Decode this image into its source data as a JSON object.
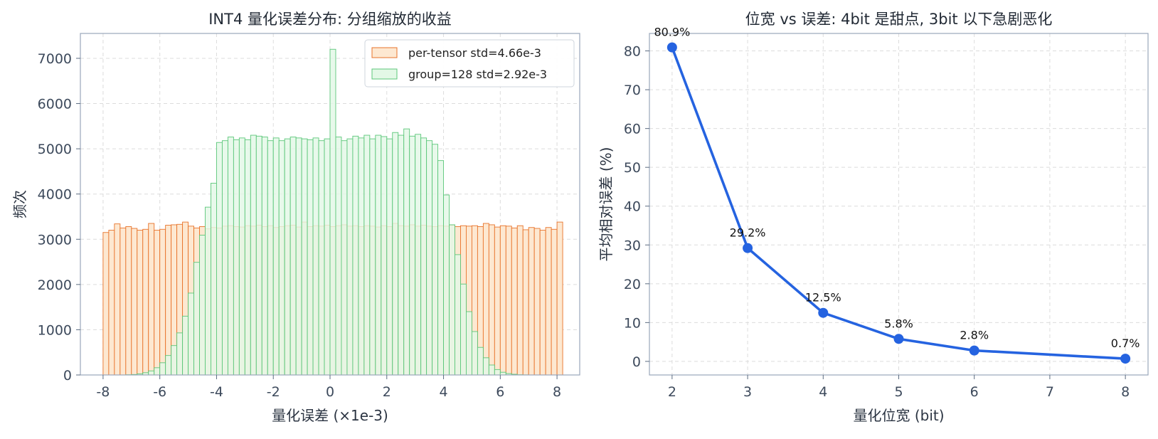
{
  "chart_data": [
    {
      "type": "bar",
      "title": "INT4 量化误差分布: 分组缩放的收益",
      "xlabel": "量化误差 (×1e-3)",
      "ylabel": "频次",
      "xlim": [
        -8.8,
        8.8
      ],
      "ylim": [
        0,
        7550
      ],
      "xticks": [
        -8,
        -6,
        -4,
        -2,
        0,
        2,
        4,
        6,
        8
      ],
      "xtick_labels": [
        "-8",
        "-6",
        "-4",
        "-2",
        "0",
        "2",
        "4",
        "6",
        "8"
      ],
      "yticks": [
        0,
        1000,
        2000,
        3000,
        4000,
        5000,
        6000,
        7000
      ],
      "grid": true,
      "legend_position": "top-right",
      "bin_width": 0.2,
      "series": [
        {
          "name": "per-tensor  std=4.66e-3",
          "color": "#e8732a",
          "fill": "#fde8d1",
          "bin_start": -8.0,
          "values": [
            3150,
            3200,
            3340,
            3250,
            3280,
            3240,
            3200,
            3220,
            3350,
            3200,
            3220,
            3310,
            3320,
            3330,
            3380,
            3290,
            3250,
            3280,
            3230,
            3260,
            3250,
            3290,
            3300,
            3280,
            3270,
            3300,
            3290,
            3310,
            3280,
            3300,
            3260,
            3280,
            3300,
            3310,
            3270,
            3380,
            3280,
            3300,
            3290,
            3310,
            3280,
            3300,
            3320,
            3290,
            3300,
            3280,
            3300,
            3290,
            3270,
            3300,
            3280,
            3350,
            3300,
            3290,
            3320,
            3290,
            3310,
            3290,
            3280,
            3300,
            3290,
            3310,
            3280,
            3300,
            3290,
            3300,
            3280,
            3350,
            3320,
            3270,
            3300,
            3290,
            3250,
            3300,
            3210,
            3260,
            3240,
            3200,
            3260,
            3220,
            3380
          ]
        },
        {
          "name": "group=128  std=2.92e-3",
          "color": "#5cc77a",
          "fill": "#e3f8e6",
          "bin_start": -7.2,
          "values": [
            5,
            10,
            25,
            50,
            90,
            160,
            270,
            430,
            650,
            930,
            1300,
            1810,
            2490,
            3090,
            3710,
            4240,
            5140,
            5180,
            5260,
            5200,
            5240,
            5200,
            5300,
            5280,
            5260,
            5180,
            5240,
            5180,
            5220,
            5260,
            5240,
            5220,
            5200,
            5240,
            5180,
            5220,
            7200,
            5260,
            5180,
            5220,
            5280,
            5240,
            5300,
            5220,
            5300,
            5270,
            5220,
            5360,
            5300,
            5440,
            5280,
            5320,
            5240,
            5180,
            5100,
            4740,
            3980,
            3320,
            2660,
            2010,
            1400,
            960,
            610,
            380,
            220,
            120,
            60,
            30,
            15,
            5,
            2
          ]
        }
      ]
    },
    {
      "type": "line",
      "title": "位宽 vs 误差: 4bit 是甜点, 3bit 以下急剧恶化",
      "xlabel": "量化位宽 (bit)",
      "ylabel": "平均相对误差 (%)",
      "xlim": [
        1.7,
        8.3
      ],
      "ylim": [
        -3.5,
        84.5
      ],
      "xticks": [
        2,
        3,
        4,
        5,
        6,
        7,
        8
      ],
      "yticks": [
        0,
        10,
        20,
        30,
        40,
        50,
        60,
        70,
        80
      ],
      "grid": true,
      "color": "#2563e0",
      "x": [
        2,
        3,
        4,
        5,
        6,
        8
      ],
      "y": [
        80.9,
        29.2,
        12.5,
        5.8,
        2.8,
        0.7
      ],
      "labels": [
        "80.9%",
        "29.2%",
        "12.5%",
        "5.8%",
        "2.8%",
        "0.7%"
      ]
    }
  ]
}
